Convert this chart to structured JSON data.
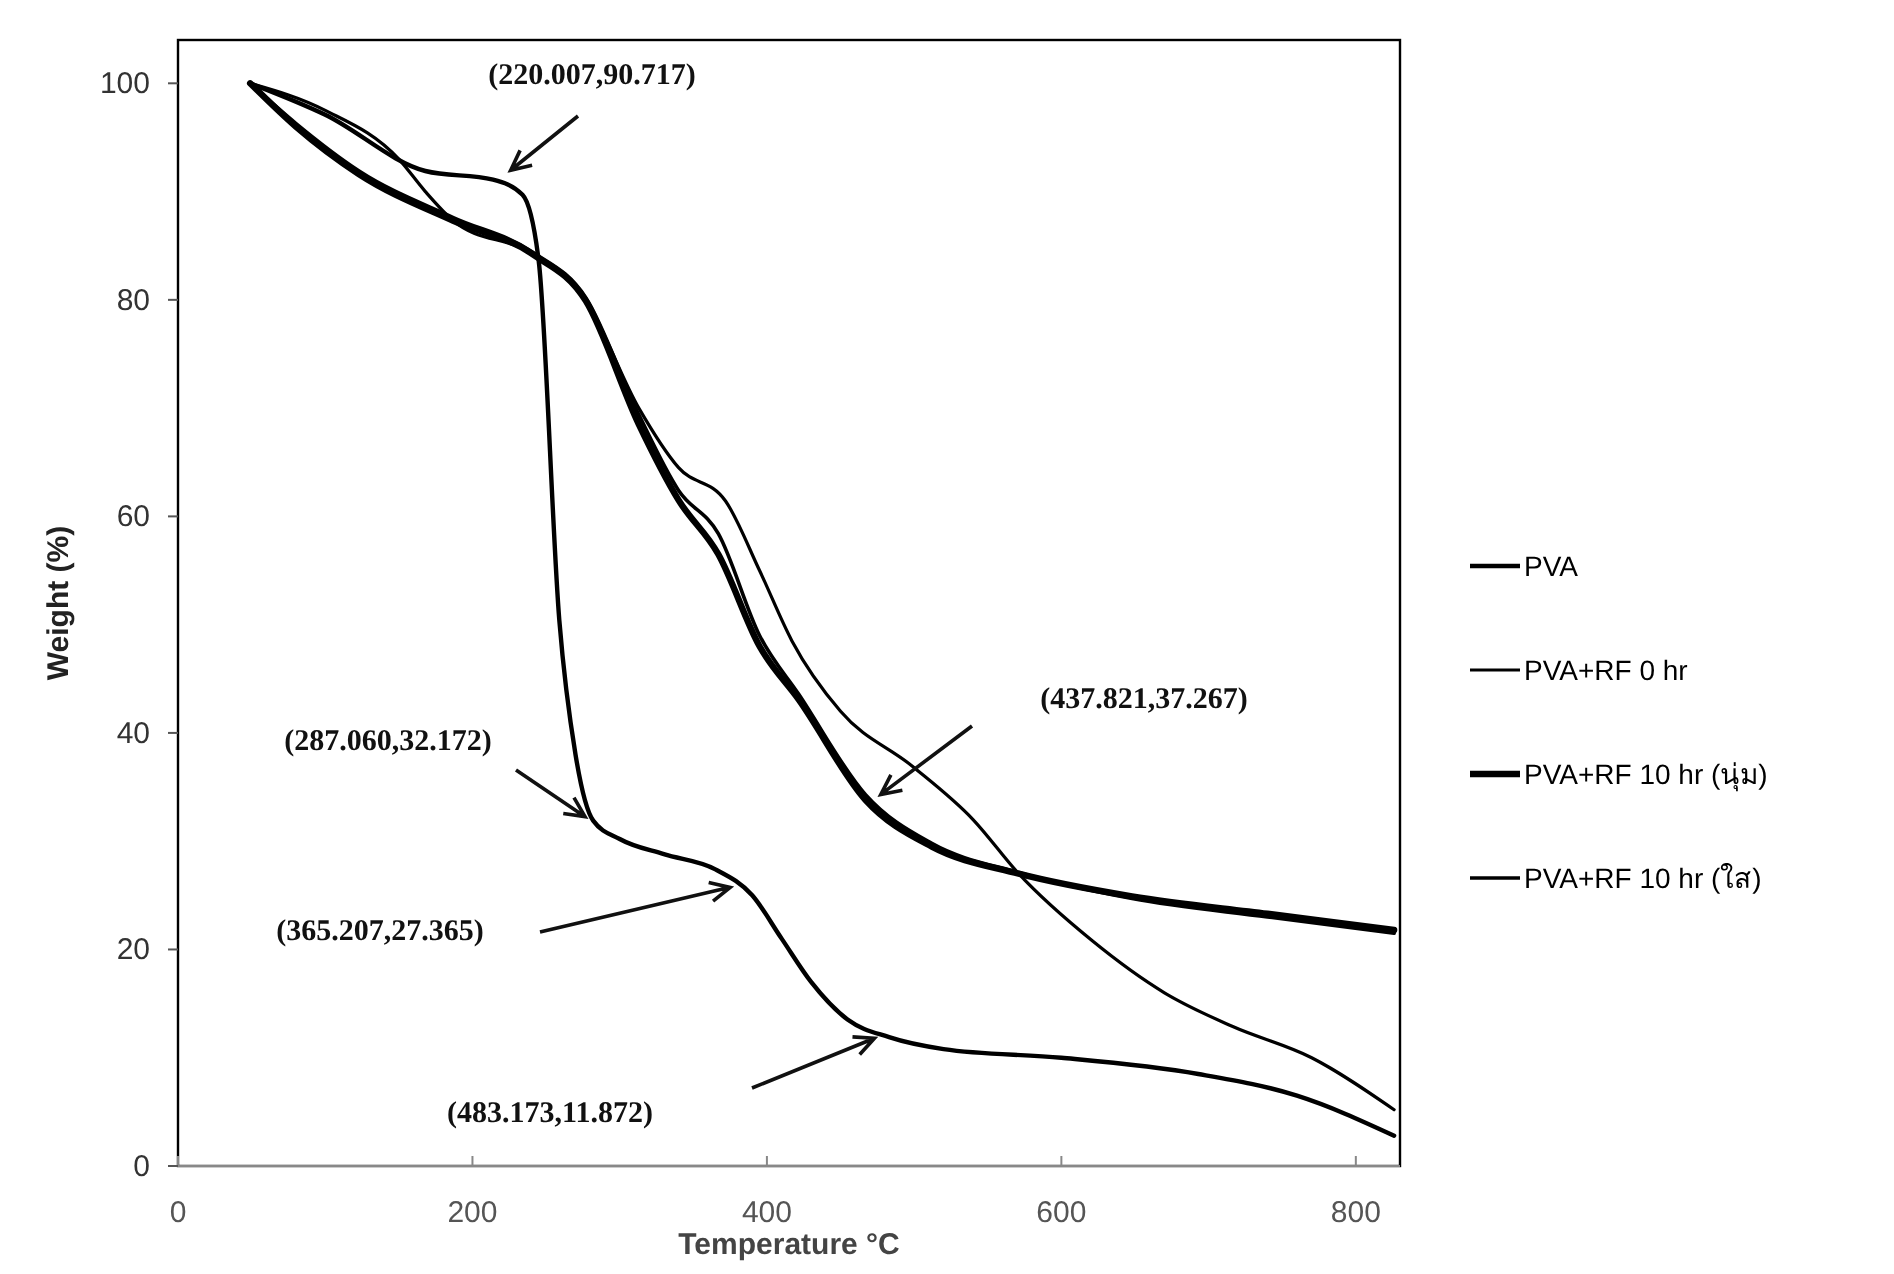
{
  "chart_data": {
    "type": "line",
    "xlabel": "Temperature °C",
    "ylabel": "Weight (%)",
    "xlim": [
      0,
      830
    ],
    "ylim": [
      0,
      104
    ],
    "xticks": [
      0,
      200,
      400,
      600,
      800
    ],
    "yticks": [
      0,
      20,
      40,
      60,
      80,
      100
    ],
    "grid": false,
    "legend": "right",
    "marker": "none",
    "line_style": "solid",
    "series": [
      {
        "name": "PVA",
        "color": "#000000",
        "x": [
          49,
          100,
          168,
          214,
          234,
          245,
          259,
          270,
          282,
          300,
          330,
          365,
          390,
          410,
          430,
          455,
          483,
          520,
          600,
          693,
          760,
          826
        ],
        "values": [
          100,
          97.1,
          91.9,
          91.1,
          89.7,
          83.6,
          50.4,
          38,
          31.9,
          30.2,
          28.8,
          27.4,
          25,
          21,
          17,
          13.5,
          11.9,
          10.8,
          10,
          8.5,
          6.5,
          2.8
        ]
      },
      {
        "name": "PVA+RF 0 hr",
        "color": "#000000",
        "x": [
          49,
          100,
          150,
          168,
          187,
          241,
          277,
          313,
          340,
          372,
          395,
          417,
          450,
          499,
          540,
          571,
          621,
          670,
          716,
          770,
          826
        ],
        "values": [
          100,
          97.5,
          93,
          90,
          87.3,
          84.2,
          79.9,
          70,
          64.5,
          61.4,
          55,
          48.5,
          42,
          36.9,
          32,
          27,
          20.8,
          16,
          12.9,
          10,
          5.2
        ]
      },
      {
        "name": "PVA+RF 10 hr (นุ่ม)",
        "color": "#000000",
        "x": [
          49,
          80,
          123,
          187,
          241,
          277,
          313,
          340,
          367,
          395,
          422,
          467,
          512,
          571,
          648,
          740,
          826
        ],
        "values": [
          100,
          96,
          91.6,
          87.3,
          84.2,
          79.9,
          68.5,
          61.5,
          56.5,
          48,
          43,
          33.8,
          29.5,
          27,
          24.9,
          23.3,
          21.8
        ]
      },
      {
        "name": "PVA+RF 10 hr (ใส)",
        "color": "#000000",
        "x": [
          49,
          80,
          123,
          187,
          241,
          277,
          313,
          340,
          367,
          395,
          422,
          467,
          512,
          571,
          648,
          740,
          826
        ],
        "values": [
          100,
          96.3,
          91.9,
          87.6,
          84.4,
          80.2,
          69.4,
          62.4,
          58.4,
          49,
          43.5,
          34.3,
          29.8,
          27.1,
          24.7,
          23,
          21.5
        ]
      }
    ],
    "annotations": [
      "(220.007,90.717)",
      "(287.060,32.172)",
      "(365.207,27.365)",
      "(437.821,37.267)",
      "(483.173,11.872)"
    ]
  }
}
